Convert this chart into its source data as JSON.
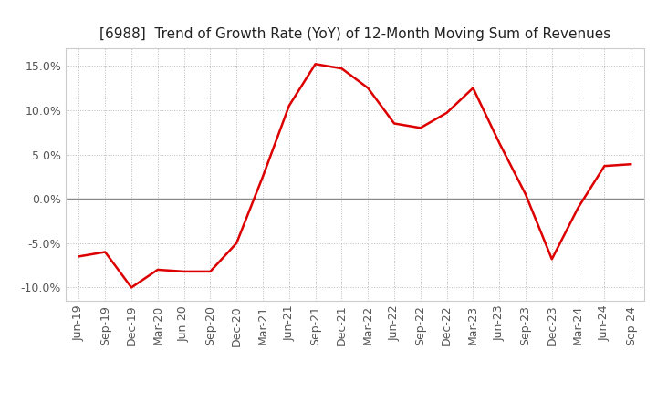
{
  "title": "[6988]  Trend of Growth Rate (YoY) of 12-Month Moving Sum of Revenues",
  "x_labels": [
    "Jun-19",
    "Sep-19",
    "Dec-19",
    "Mar-20",
    "Jun-20",
    "Sep-20",
    "Dec-20",
    "Mar-21",
    "Jun-21",
    "Sep-21",
    "Dec-21",
    "Mar-22",
    "Jun-22",
    "Sep-22",
    "Dec-22",
    "Mar-23",
    "Jun-23",
    "Sep-23",
    "Dec-23",
    "Mar-24",
    "Jun-24",
    "Sep-24"
  ],
  "y_values": [
    -6.5,
    -6.0,
    -10.0,
    -8.0,
    -8.2,
    -8.2,
    -5.0,
    2.5,
    10.5,
    15.2,
    14.7,
    12.5,
    8.5,
    8.0,
    9.7,
    12.5,
    6.3,
    0.5,
    -6.8,
    -1.0,
    3.7,
    3.9
  ],
  "line_color": "#dd0000",
  "line_width": 1.8,
  "ylim": [
    -11.5,
    17.0
  ],
  "yticks": [
    -10.0,
    -5.0,
    0.0,
    5.0,
    10.0,
    15.0
  ],
  "background_color": "#ffffff",
  "grid_color": "#bbbbbb",
  "title_fontsize": 11,
  "tick_fontsize": 9,
  "tick_color": "#555555",
  "zero_line_color": "#888888",
  "spine_color": "#cccccc"
}
